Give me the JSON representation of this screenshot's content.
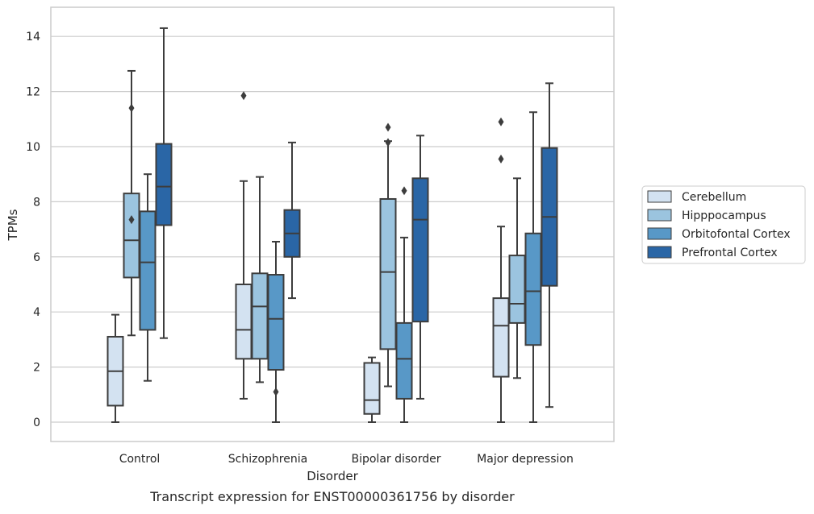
{
  "chart_data": {
    "type": "box",
    "caption": "Transcript expression for ENST00000361756 by disorder",
    "xlabel": "Disorder",
    "ylabel": "TPMs",
    "ylim": [
      -0.7,
      15.1
    ],
    "yticks": [
      0,
      2,
      4,
      6,
      8,
      10,
      12,
      14
    ],
    "grid": "horizontal",
    "legend_position": "right",
    "categories": [
      "Control",
      "Schizophrenia",
      "Bipolar disorder",
      "Major depression"
    ],
    "series": [
      {
        "name": "Cerebellum",
        "color": "#d3e2f1",
        "boxes": [
          {
            "whisker_low": 0.0,
            "q1": 0.6,
            "median": 1.85,
            "q3": 3.1,
            "whisker_high": 3.9,
            "outliers": []
          },
          {
            "whisker_low": 0.85,
            "q1": 2.3,
            "median": 3.35,
            "q3": 5.0,
            "whisker_high": 8.75,
            "outliers": [
              11.85
            ]
          },
          {
            "whisker_low": 0.0,
            "q1": 0.3,
            "median": 0.8,
            "q3": 2.15,
            "whisker_high": 2.35,
            "outliers": []
          },
          {
            "whisker_low": 0.0,
            "q1": 1.65,
            "median": 3.5,
            "q3": 4.5,
            "whisker_high": 7.1,
            "outliers": [
              9.55,
              10.9
            ]
          }
        ]
      },
      {
        "name": "Hipppocampus",
        "color": "#9bc4df",
        "boxes": [
          {
            "whisker_low": 3.15,
            "q1": 5.25,
            "median": 6.6,
            "q3": 8.3,
            "whisker_high": 12.75,
            "outliers": [
              7.35,
              11.4
            ]
          },
          {
            "whisker_low": 1.45,
            "q1": 2.3,
            "median": 4.2,
            "q3": 5.4,
            "whisker_high": 8.9,
            "outliers": []
          },
          {
            "whisker_low": 1.3,
            "q1": 2.65,
            "median": 5.45,
            "q3": 8.1,
            "whisker_high": 10.2,
            "outliers": [
              10.15,
              10.7
            ]
          },
          {
            "whisker_low": 1.6,
            "q1": 3.6,
            "median": 4.3,
            "q3": 6.05,
            "whisker_high": 8.85,
            "outliers": []
          }
        ]
      },
      {
        "name": "Orbitofontal Cortex",
        "color": "#5898c7",
        "boxes": [
          {
            "whisker_low": 1.5,
            "q1": 3.35,
            "median": 5.8,
            "q3": 7.65,
            "whisker_high": 9.0,
            "outliers": []
          },
          {
            "whisker_low": 0.0,
            "q1": 1.9,
            "median": 3.75,
            "q3": 5.35,
            "whisker_high": 6.55,
            "outliers": [
              1.1
            ]
          },
          {
            "whisker_low": 0.0,
            "q1": 0.85,
            "median": 2.3,
            "q3": 3.6,
            "whisker_high": 6.7,
            "outliers": [
              8.4
            ]
          },
          {
            "whisker_low": 0.0,
            "q1": 2.8,
            "median": 4.75,
            "q3": 6.85,
            "whisker_high": 11.25,
            "outliers": []
          }
        ]
      },
      {
        "name": "Prefrontal Cortex",
        "color": "#2a66a6",
        "boxes": [
          {
            "whisker_low": 3.05,
            "q1": 7.15,
            "median": 8.55,
            "q3": 10.1,
            "whisker_high": 14.3,
            "outliers": []
          },
          {
            "whisker_low": 4.5,
            "q1": 6.0,
            "median": 6.85,
            "q3": 7.7,
            "whisker_high": 10.15,
            "outliers": []
          },
          {
            "whisker_low": 0.85,
            "q1": 3.65,
            "median": 7.35,
            "q3": 8.85,
            "whisker_high": 10.4,
            "outliers": []
          },
          {
            "whisker_low": 0.55,
            "q1": 4.95,
            "median": 7.45,
            "q3": 9.95,
            "whisker_high": 12.3,
            "outliers": []
          }
        ]
      }
    ]
  }
}
